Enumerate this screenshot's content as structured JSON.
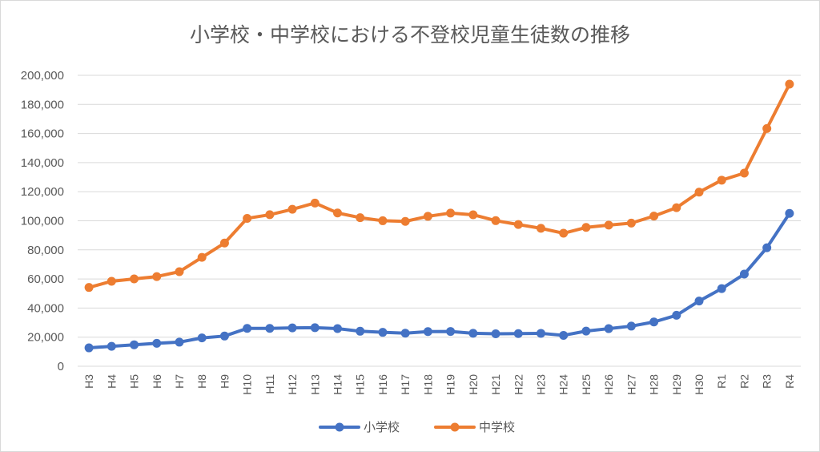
{
  "chart_data": {
    "type": "line",
    "title": "小学校・中学校における不登校児童生徒数の推移",
    "xlabel": "",
    "ylabel": "",
    "ylim": [
      0,
      200000
    ],
    "yticks": [
      "0",
      "20,000",
      "40,000",
      "60,000",
      "80,000",
      "100,000",
      "120,000",
      "140,000",
      "160,000",
      "180,000",
      "200,000"
    ],
    "ytick_values": [
      0,
      20000,
      40000,
      60000,
      80000,
      100000,
      120000,
      140000,
      160000,
      180000,
      200000
    ],
    "grid": true,
    "legend_position": "bottom",
    "categories": [
      "H3",
      "H4",
      "H5",
      "H6",
      "H7",
      "H8",
      "H9",
      "H10",
      "H11",
      "H12",
      "H13",
      "H14",
      "H15",
      "H16",
      "H17",
      "H18",
      "H19",
      "H20",
      "H21",
      "H22",
      "H23",
      "H24",
      "H25",
      "H26",
      "H27",
      "H28",
      "H29",
      "H30",
      "R1",
      "R2",
      "R3",
      "R4"
    ],
    "series": [
      {
        "name": "小学校",
        "color": "#4472c4",
        "values": [
          12645,
          13710,
          14769,
          15786,
          16569,
          19498,
          20765,
          26017,
          26047,
          26373,
          26511,
          25869,
          24077,
          23318,
          22709,
          23825,
          23927,
          22652,
          22327,
          22463,
          22622,
          21243,
          24175,
          25864,
          27583,
          30448,
          35032,
          44841,
          53350,
          63350,
          81498,
          105112
        ]
      },
      {
        "name": "中学校",
        "color": "#ed7d31",
        "values": [
          54172,
          58421,
          60039,
          61663,
          65022,
          74853,
          84701,
          101675,
          104180,
          107913,
          112211,
          105383,
          102149,
          100040,
          99578,
          103069,
          105328,
          104153,
          100105,
          97428,
          94836,
          91446,
          95442,
          97033,
          98408,
          103235,
          108999,
          119687,
          127922,
          132777,
          163442,
          193936
        ]
      }
    ]
  }
}
